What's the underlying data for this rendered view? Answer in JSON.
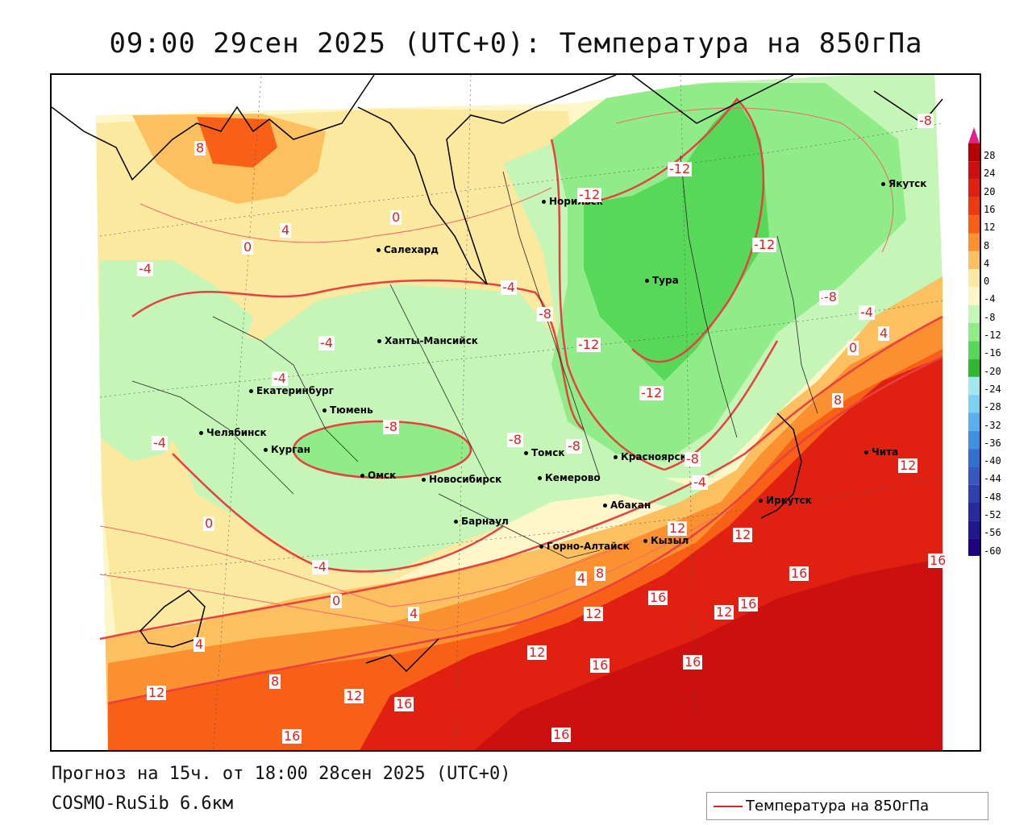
{
  "title": "09:00 29сен 2025 (UTC+0): Температура на 850гПа",
  "footer": {
    "forecast": "Прогноз на 15ч. от 18:00 28сен 2025 (UTC+0)",
    "model": "COSMO-RuSib 6.6км"
  },
  "legend": {
    "label": "Температура на 850гПа",
    "line_color": "#e02020"
  },
  "colorbar": {
    "ticks": [
      "28",
      "24",
      "20",
      "16",
      "12",
      "8",
      "4",
      "0",
      "-4",
      "-8",
      "-12",
      "-16",
      "-20",
      "-24",
      "-28",
      "-32",
      "-36",
      "-40",
      "-44",
      "-48",
      "-52",
      "-56",
      "-60"
    ],
    "colors": [
      "#b80000",
      "#cc1010",
      "#e02010",
      "#ee3a10",
      "#f86018",
      "#fa9030",
      "#fcc060",
      "#fce9a0",
      "#fdf6c8",
      "#c6f5b8",
      "#90ec88",
      "#58d858",
      "#30b830",
      "#a0e8f0",
      "#7cd0f0",
      "#58b0ec",
      "#4090e0",
      "#3070d0",
      "#3858c0",
      "#3040b0",
      "#2828a0",
      "#201890",
      "#200080"
    ]
  },
  "cities": [
    {
      "name": "Салехард"
    },
    {
      "name": "Норильск"
    },
    {
      "name": "Якутск"
    },
    {
      "name": "Тура"
    },
    {
      "name": "Ханты-Мансийск"
    },
    {
      "name": "Екатеринбург"
    },
    {
      "name": "Тюмень"
    },
    {
      "name": "Челябинск"
    },
    {
      "name": "Курган"
    },
    {
      "name": "Омск"
    },
    {
      "name": "Томск"
    },
    {
      "name": "Новосибирск"
    },
    {
      "name": "Кемерово"
    },
    {
      "name": "Красноярск"
    },
    {
      "name": "Иркутск"
    },
    {
      "name": "Чита"
    },
    {
      "name": "Абакан"
    },
    {
      "name": "Барнаул"
    },
    {
      "name": "Горно-Алтайск"
    },
    {
      "name": "Кызыл"
    }
  ],
  "contour_labels": [
    "8",
    "4",
    "0",
    "0",
    "-4",
    "-4",
    "-4",
    "-4",
    "-4",
    "-8",
    "-8",
    "-8",
    "-8",
    "-8",
    "-8",
    "-12",
    "-12",
    "-12",
    "-12",
    "-12",
    "-8",
    "-4",
    "0",
    "4",
    "8",
    "12",
    "-4",
    "12",
    "12",
    "16",
    "16",
    "16",
    "12",
    "16",
    "12",
    "16",
    "16",
    "12",
    "12",
    "16",
    "16",
    "16",
    "0",
    "4",
    "8",
    "4",
    "0",
    "-4",
    "4",
    "8",
    "12",
    "-8"
  ]
}
